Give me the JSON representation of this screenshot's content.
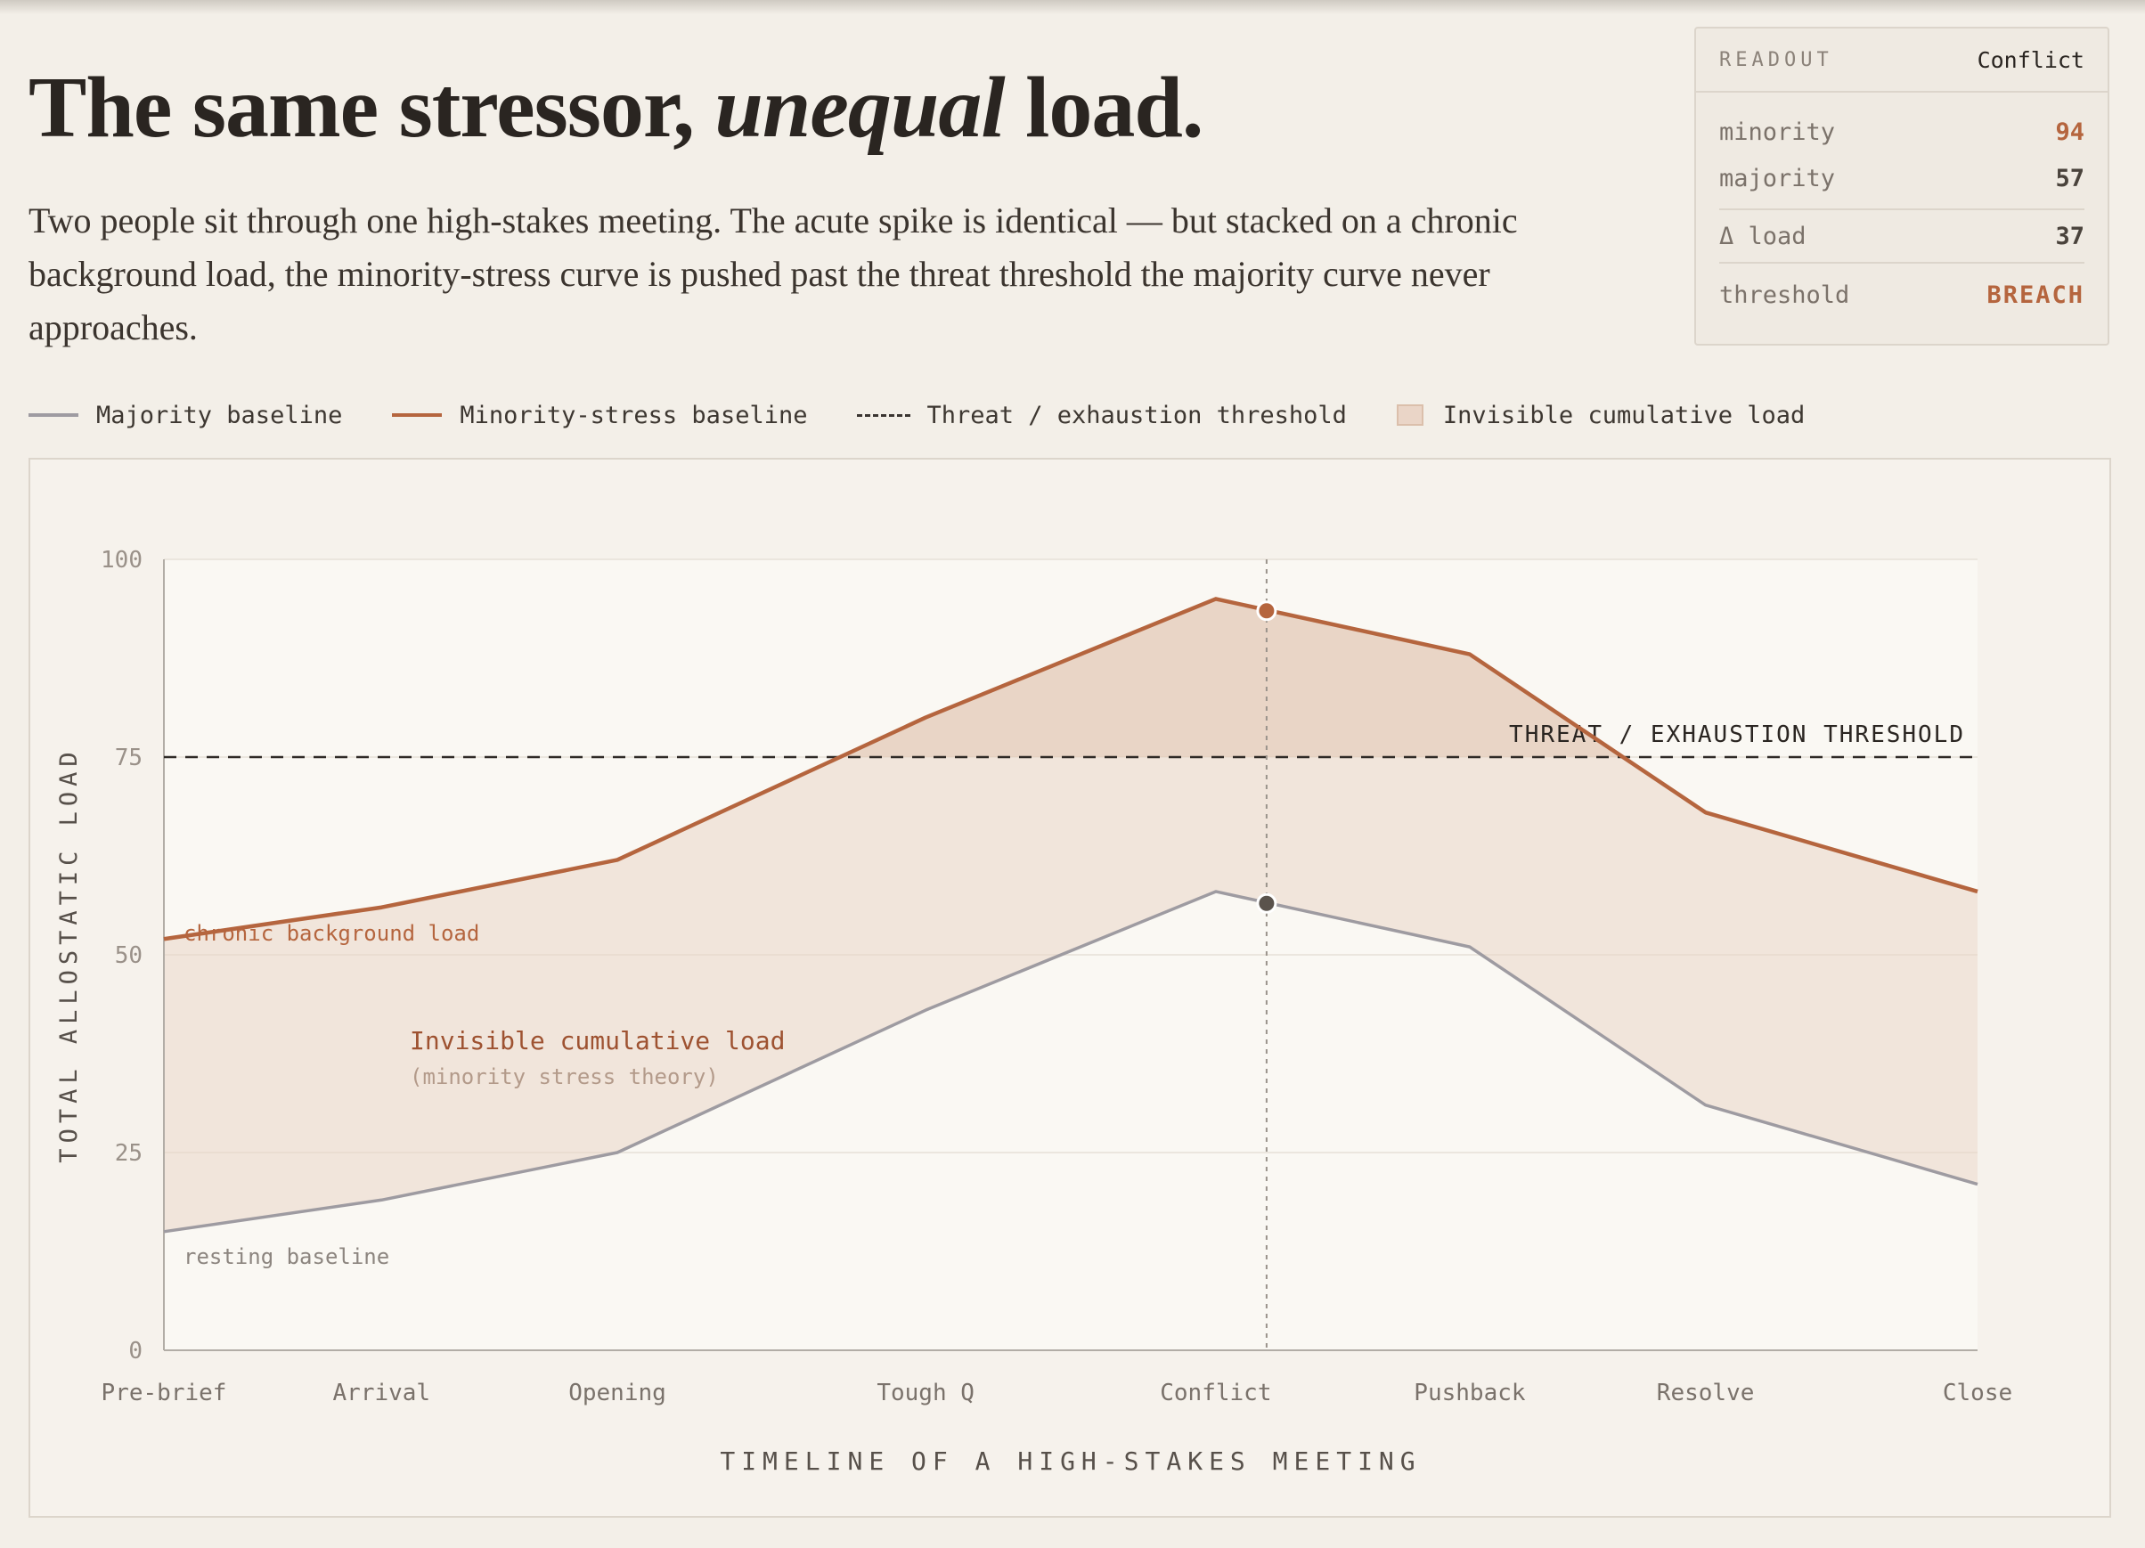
{
  "header": {
    "title_pre": "The same stressor, ",
    "title_em": "unequal",
    "title_post": " load.",
    "lede": "Two people sit through one high-stakes meeting. The acute spike is identical — but stacked on a chronic background load, the minority-stress curve is pushed past the threat threshold the majority curve never approaches."
  },
  "readout": {
    "label": "READOUT",
    "stage": "Conflict",
    "rows": [
      {
        "key": "minority",
        "value": "94"
      },
      {
        "key": "majority",
        "value": "57"
      },
      {
        "key": "Δ load",
        "value": "37"
      },
      {
        "key": "threshold",
        "value": "BREACH"
      }
    ]
  },
  "legend": {
    "majority": "Majority baseline",
    "minority": "Minority-stress baseline",
    "threshold": "Threat / exhaustion threshold",
    "load": "Invisible cumulative load"
  },
  "colors": {
    "minority": "#b5653e",
    "majority": "#9e9ba1",
    "fill": "#ead5c7",
    "threshold": "#2f2a26",
    "plot_bg": "#faf8f3"
  },
  "chart_data": {
    "type": "line",
    "xlabel": "TIMELINE OF A HIGH-STAKES MEETING",
    "ylabel": "TOTAL ALLOSTATIC LOAD",
    "ylim": [
      0,
      100
    ],
    "yticks": [
      0,
      25,
      50,
      75,
      100
    ],
    "x_ticks": [
      {
        "label": "Pre-brief",
        "t": 0
      },
      {
        "label": "Arrival",
        "t": 1.2
      },
      {
        "label": "Opening",
        "t": 2.5
      },
      {
        "label": "Tough Q",
        "t": 4.2
      },
      {
        "label": "Conflict",
        "t": 5.8
      },
      {
        "label": "Pushback",
        "t": 7.2
      },
      {
        "label": "Resolve",
        "t": 8.5
      },
      {
        "label": "Close",
        "t": 10
      }
    ],
    "xlim": [
      0,
      10
    ],
    "series": [
      {
        "name": "Minority-stress baseline",
        "values": [
          52,
          56,
          62,
          80,
          95,
          88,
          68,
          58
        ]
      },
      {
        "name": "Majority baseline",
        "values": [
          15,
          19,
          25,
          43,
          58,
          51,
          31,
          21
        ]
      }
    ],
    "threshold": {
      "value": 75,
      "label": "THREAT / EXHAUSTION THRESHOLD"
    },
    "annotations": {
      "chronic": "chronic background load",
      "resting": "resting baseline",
      "load_title": "Invisible cumulative load",
      "load_sub": "(minority stress theory)"
    },
    "cursor": {
      "t": 6.08,
      "minority": 93.5,
      "majority": 56.5
    },
    "grid": true
  }
}
